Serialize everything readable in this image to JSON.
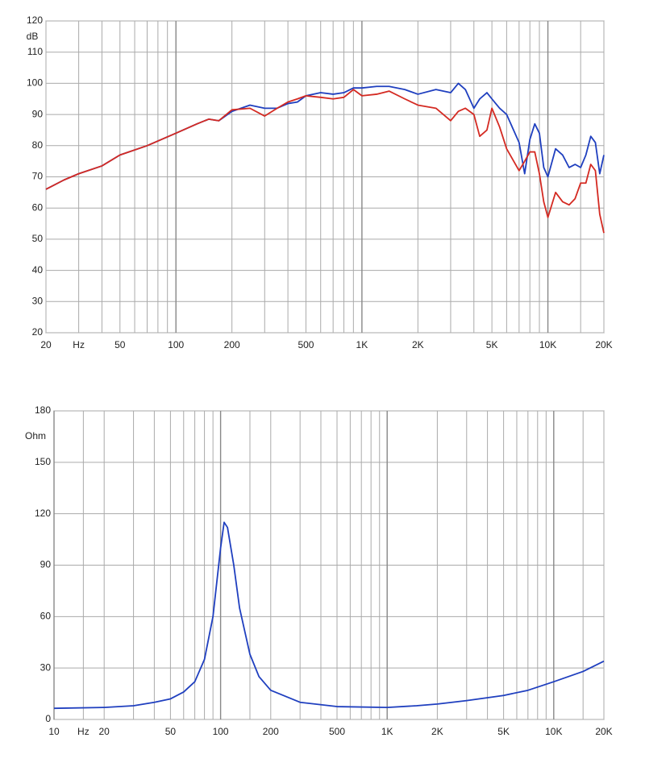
{
  "chart_data": [
    {
      "type": "line",
      "log_x": true,
      "y_unit": "dB",
      "xlim": [
        20,
        20000
      ],
      "ylim": [
        20,
        120
      ],
      "xticks": [
        20,
        {
          "value": 30,
          "label": "Hz"
        },
        50,
        100,
        200,
        500,
        {
          "value": 1000,
          "label": "1K"
        },
        {
          "value": 2000,
          "label": "2K"
        },
        {
          "value": 5000,
          "label": "5K"
        },
        {
          "value": 10000,
          "label": "10K"
        },
        {
          "value": 20000,
          "label": "20K"
        }
      ],
      "xgrid": [
        20,
        30,
        40,
        50,
        60,
        70,
        80,
        90,
        100,
        200,
        300,
        400,
        500,
        600,
        700,
        800,
        900,
        1000,
        2000,
        3000,
        4000,
        5000,
        6000,
        7000,
        8000,
        9000,
        10000,
        15000,
        20000
      ],
      "yticks": [
        20,
        30,
        40,
        50,
        60,
        70,
        80,
        90,
        100,
        110,
        120
      ],
      "grid": true,
      "x": [
        20,
        25,
        30,
        40,
        50,
        70,
        100,
        130,
        150,
        170,
        200,
        250,
        300,
        350,
        400,
        450,
        500,
        600,
        700,
        800,
        900,
        1000,
        1200,
        1400,
        1700,
        2000,
        2500,
        3000,
        3300,
        3600,
        4000,
        4300,
        4700,
        5000,
        5500,
        6000,
        7000,
        7500,
        8000,
        8500,
        9000,
        9500,
        10000,
        11000,
        12000,
        13000,
        14000,
        15000,
        16000,
        17000,
        18000,
        19000,
        20000
      ],
      "series": [
        {
          "color": "#1f3fbf",
          "values": [
            66,
            69,
            71,
            73.5,
            77,
            80,
            84,
            87,
            88.5,
            88,
            91,
            93,
            92,
            92,
            93.5,
            94,
            96,
            97,
            96.5,
            97,
            98.5,
            98.5,
            99,
            99,
            98,
            96.5,
            98,
            97,
            100,
            98,
            92,
            95,
            97,
            95,
            92,
            90,
            81,
            71,
            82,
            87,
            84,
            73,
            70,
            79,
            77,
            73,
            74,
            73,
            77,
            83,
            81,
            71,
            77
          ]
        },
        {
          "color": "#d42a22",
          "values": [
            66,
            69,
            71,
            73.5,
            77,
            80,
            84,
            87,
            88.5,
            88,
            91.5,
            92,
            89.5,
            92,
            94,
            95,
            96,
            95.5,
            95,
            95.5,
            98,
            96,
            96.5,
            97.5,
            95,
            93,
            92,
            88,
            91,
            92,
            90,
            83,
            85,
            92,
            86,
            79,
            72,
            75,
            78,
            78,
            71,
            62,
            57,
            65,
            62,
            61,
            63,
            68,
            68,
            74,
            72,
            58,
            52
          ]
        }
      ]
    },
    {
      "type": "line",
      "log_x": true,
      "y_unit": "Ohm",
      "xlim": [
        10,
        20000
      ],
      "ylim": [
        0,
        180
      ],
      "xticks": [
        10,
        {
          "value": 15,
          "label": "Hz"
        },
        20,
        50,
        100,
        200,
        500,
        {
          "value": 1000,
          "label": "1K"
        },
        {
          "value": 2000,
          "label": "2K"
        },
        {
          "value": 5000,
          "label": "5K"
        },
        {
          "value": 10000,
          "label": "10K"
        },
        {
          "value": 20000,
          "label": "20K"
        }
      ],
      "xgrid": [
        10,
        15,
        20,
        30,
        40,
        50,
        60,
        70,
        80,
        90,
        100,
        150,
        200,
        300,
        400,
        500,
        600,
        700,
        800,
        900,
        1000,
        2000,
        3000,
        4000,
        5000,
        6000,
        7000,
        8000,
        9000,
        10000,
        15000,
        20000
      ],
      "yticks": [
        0,
        30,
        60,
        90,
        120,
        150,
        180
      ],
      "grid": true,
      "x": [
        10,
        20,
        30,
        40,
        50,
        60,
        70,
        80,
        90,
        100,
        105,
        110,
        120,
        130,
        150,
        170,
        200,
        300,
        500,
        1000,
        1500,
        2000,
        3000,
        5000,
        7000,
        10000,
        15000,
        20000
      ],
      "series": [
        {
          "color": "#1f3fbf",
          "values": [
            6.5,
            7,
            8,
            10,
            12,
            16,
            22,
            35,
            60,
            100,
            115,
            112,
            90,
            65,
            38,
            25,
            17,
            10,
            7.5,
            7,
            8,
            9,
            11,
            14,
            17,
            22,
            28,
            34
          ]
        }
      ]
    }
  ]
}
